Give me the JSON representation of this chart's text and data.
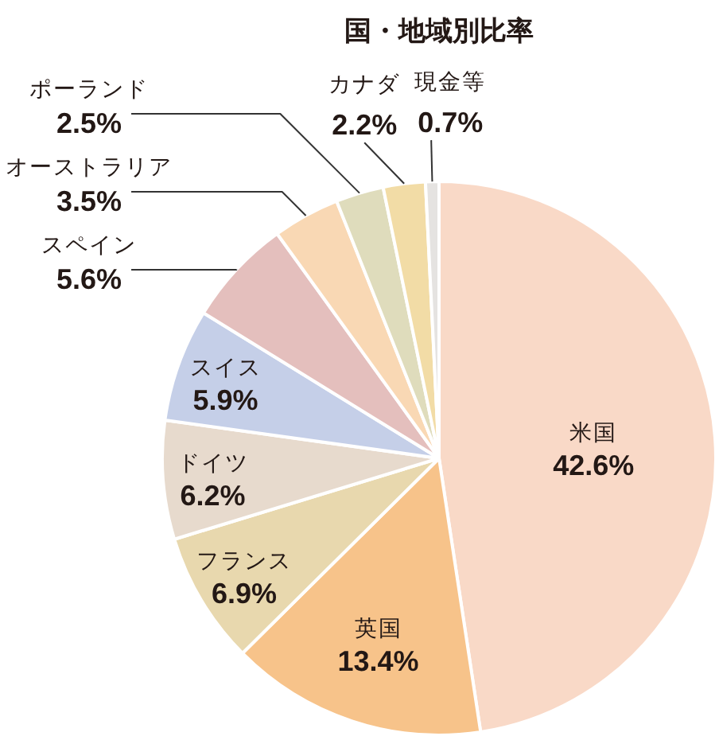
{
  "chart_data": {
    "type": "pie",
    "title": "国・地域別比率",
    "categories": [
      "米国",
      "英国",
      "フランス",
      "ドイツ",
      "スイス",
      "スペイン",
      "オーストラリア",
      "ポーランド",
      "カナダ",
      "現金等"
    ],
    "values": [
      42.6,
      13.4,
      6.9,
      6.2,
      5.9,
      5.6,
      3.5,
      2.5,
      2.2,
      0.7
    ],
    "value_labels": [
      "42.6%",
      "13.4%",
      "6.9%",
      "6.2%",
      "5.9%",
      "5.6%",
      "3.5%",
      "2.5%",
      "2.2%",
      "0.7%"
    ],
    "colors": [
      "#f9d9c7",
      "#f7c38a",
      "#e8d8ae",
      "#e7dacd",
      "#c5cfe8",
      "#e4bfbd",
      "#f9d8b4",
      "#dfdcbc",
      "#f2dca6",
      "#e5e3e1"
    ]
  }
}
